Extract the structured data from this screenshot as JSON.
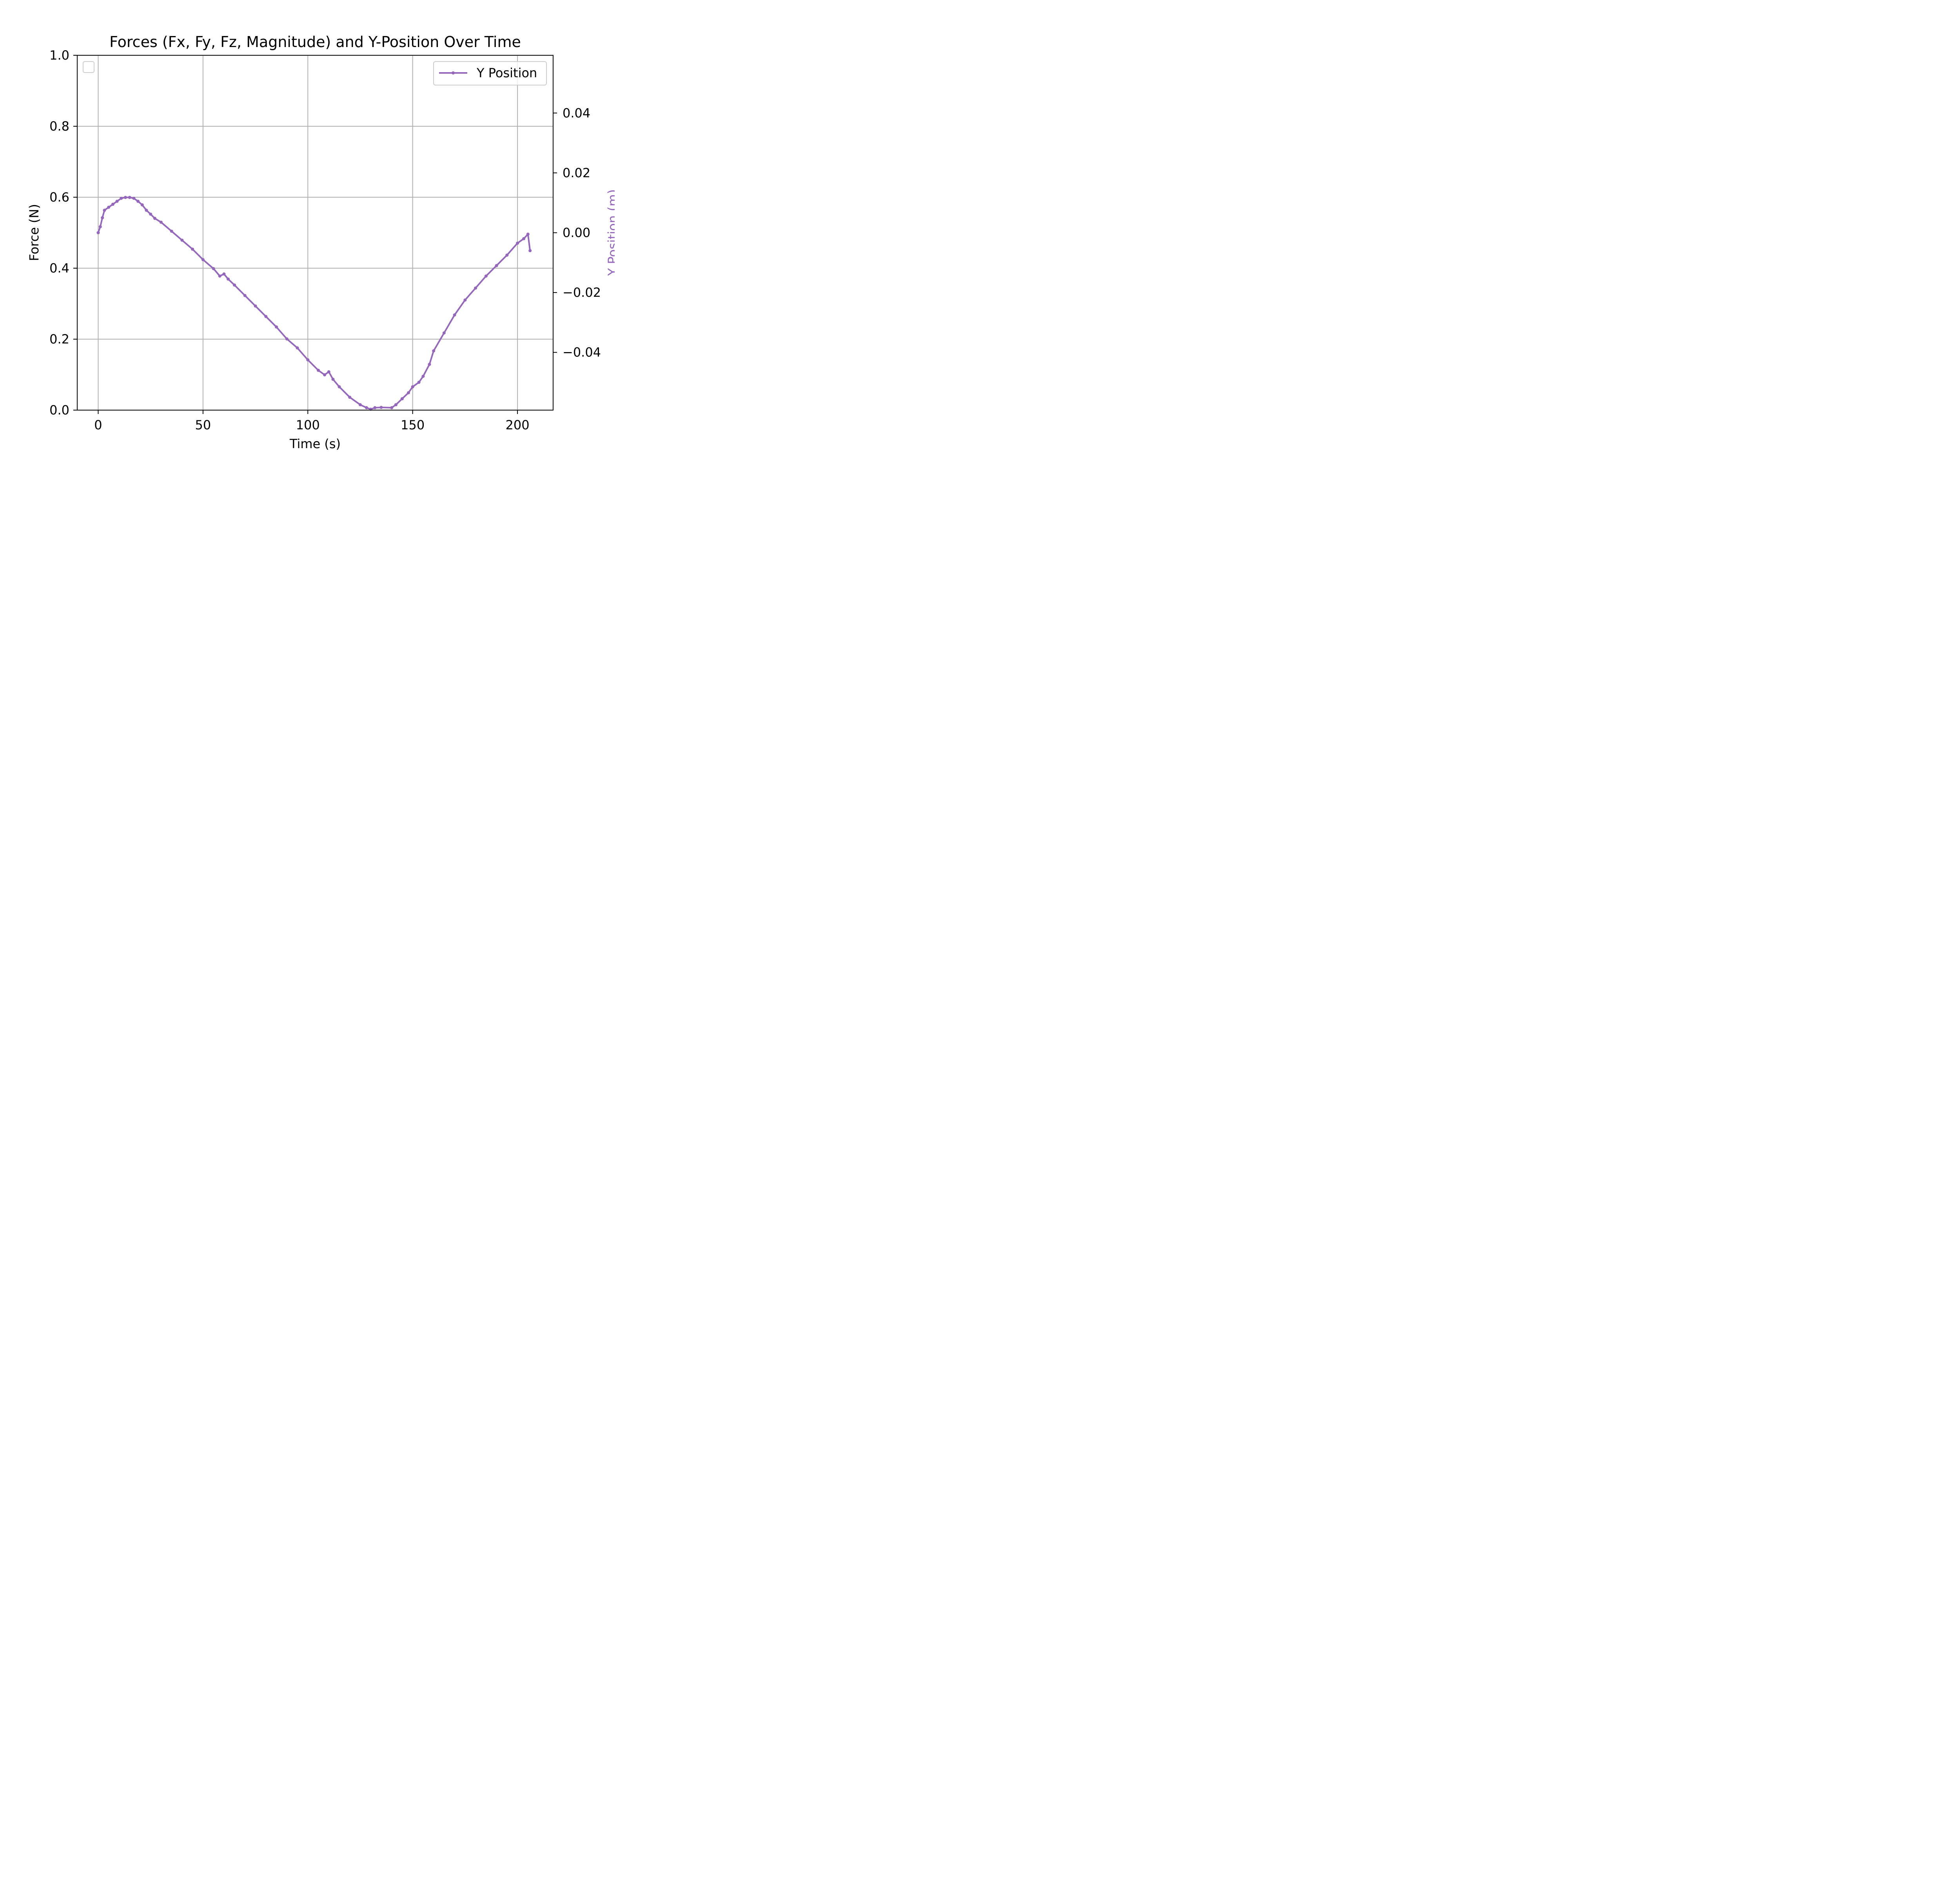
{
  "chart_data": {
    "type": "line",
    "title": "Forces (Fx, Fy, Fz, Magnitude) and Y-Position Over Time",
    "xlabel": "Time (s)",
    "ylabel_left": "Force (N)",
    "ylabel_right": "Y Position (m)",
    "xlim": [
      -10,
      217
    ],
    "ylim_left": [
      0.0,
      1.0
    ],
    "ylim_right": [
      -0.0593,
      0.0593
    ],
    "xticks": [
      "0",
      "50",
      "100",
      "150",
      "200"
    ],
    "yticks_left": [
      "0.0",
      "0.2",
      "0.4",
      "0.6",
      "0.8",
      "1.0"
    ],
    "yticks_right": [
      "−0.04",
      "−0.02",
      "0.00",
      "0.02",
      "0.04"
    ],
    "grid": true,
    "legend_left": {
      "placement": "top-left",
      "entries": []
    },
    "legend_right": {
      "placement": "top-right",
      "entries": [
        "Y Position"
      ]
    },
    "colors": {
      "y_position": "#9467bd",
      "grid": "#b0b0b0",
      "axes": "#000000"
    },
    "series": [
      {
        "name": "Y Position",
        "axis": "right",
        "marker": "dot",
        "x": [
          0,
          1,
          2,
          3,
          5,
          7,
          9,
          11,
          13,
          15,
          17,
          19,
          21,
          23,
          25,
          27,
          30,
          35,
          40,
          45,
          50,
          55,
          58,
          60,
          62,
          65,
          70,
          75,
          80,
          85,
          90,
          95,
          100,
          105,
          108,
          110,
          112,
          115,
          120,
          125,
          128,
          130,
          132,
          135,
          140,
          142,
          145,
          148,
          150,
          153,
          155,
          158,
          160,
          165,
          170,
          175,
          180,
          185,
          190,
          195,
          200,
          203,
          205,
          206
        ],
        "y": [
          0.0,
          0.002,
          0.005,
          0.0075,
          0.0085,
          0.0095,
          0.0105,
          0.0115,
          0.0118,
          0.0118,
          0.0115,
          0.0105,
          0.0093,
          0.0075,
          0.0062,
          0.0048,
          0.0035,
          0.0005,
          -0.0025,
          -0.0055,
          -0.009,
          -0.012,
          -0.0145,
          -0.0138,
          -0.0155,
          -0.0175,
          -0.021,
          -0.0245,
          -0.028,
          -0.0315,
          -0.0355,
          -0.0385,
          -0.0425,
          -0.046,
          -0.0475,
          -0.0465,
          -0.049,
          -0.0515,
          -0.055,
          -0.0575,
          -0.0585,
          -0.059,
          -0.0585,
          -0.0584,
          -0.0585,
          -0.0575,
          -0.0555,
          -0.0535,
          -0.0515,
          -0.05,
          -0.048,
          -0.044,
          -0.0395,
          -0.0335,
          -0.0275,
          -0.0225,
          -0.0185,
          -0.0145,
          -0.011,
          -0.0075,
          -0.0035,
          -0.002,
          -0.0005,
          -0.006
        ]
      }
    ]
  }
}
